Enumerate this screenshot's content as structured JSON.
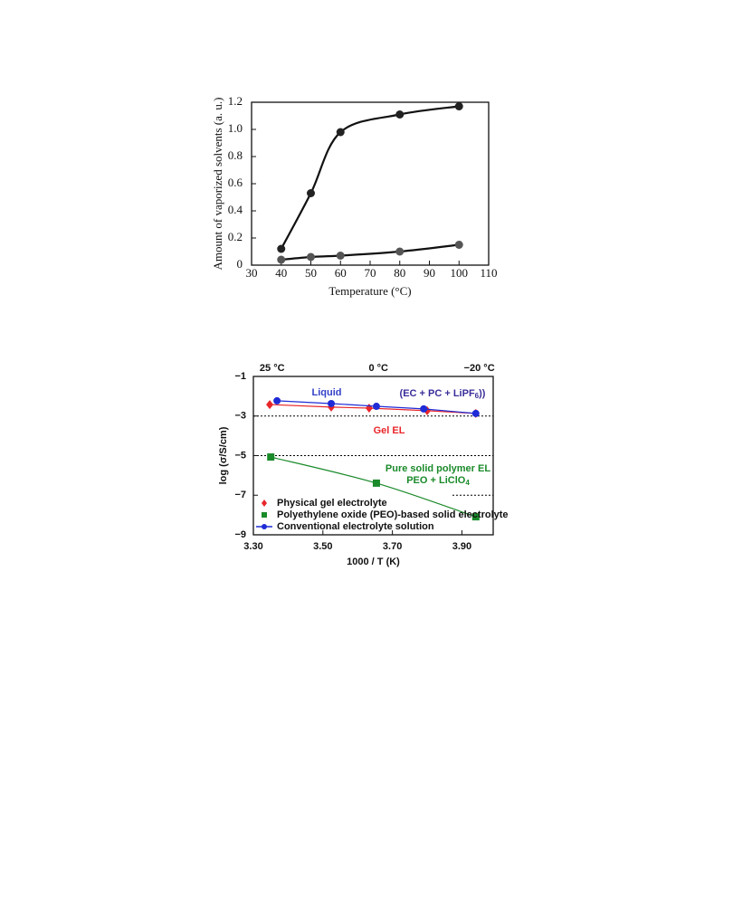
{
  "chart_data": [
    {
      "type": "line",
      "smooth": true,
      "x_label": "Temperature (°C)",
      "y_label": "Amount of vaporized solvents  (a. u.)",
      "xlim": [
        30,
        110
      ],
      "xticks": [
        30,
        40,
        50,
        60,
        70,
        80,
        90,
        100,
        110
      ],
      "ylim": [
        0,
        1.2
      ],
      "yticks": [
        0,
        0.2,
        0.4,
        0.6,
        0.8,
        {
          "value": 1.0,
          "label": "1.0"
        },
        1.2
      ],
      "series": [
        {
          "color": "#222222",
          "marker": "circle",
          "x": [
            40,
            50,
            60,
            80,
            100
          ],
          "values": [
            0.12,
            0.53,
            0.98,
            1.11,
            1.17
          ]
        },
        {
          "color": "#555555",
          "marker": "circle",
          "x": [
            40,
            50,
            60,
            80,
            100
          ],
          "values": [
            0.04,
            0.06,
            0.07,
            0.1,
            0.15
          ]
        }
      ]
    },
    {
      "type": "line",
      "smooth": false,
      "x_label": "1000 / T (K)",
      "y_label": "log (σ/S/cm)",
      "xlim": [
        3.3,
        3.99
      ],
      "xticks": [
        {
          "value": 3.3,
          "label": "3.30"
        },
        {
          "value": 3.5,
          "label": "3.50"
        },
        {
          "value": 3.7,
          "label": "3.70"
        },
        {
          "value": 3.9,
          "label": "3.90"
        }
      ],
      "ylim": [
        -9,
        -1
      ],
      "yticks": [
        {
          "value": -1,
          "label": "−1"
        },
        {
          "value": -3,
          "label": "−3"
        },
        {
          "value": -5,
          "label": "−5"
        },
        {
          "value": -7,
          "label": "−7"
        },
        {
          "value": -9,
          "label": "−9"
        }
      ],
      "top_ticks": [
        {
          "value": 3.354,
          "label": "25 °C"
        },
        {
          "value": 3.66,
          "label": "0 °C"
        },
        {
          "value": 3.95,
          "label": "−20 °C"
        }
      ],
      "annotations": [
        {
          "parts": [
            "Liquid"
          ],
          "color": "#3340c8"
        },
        {
          "parts": [
            "(EC + PC + LiPF",
            "6",
            "))"
          ],
          "color": "#3a2e9a"
        },
        {
          "parts": [
            "Gel EL"
          ],
          "color": "#e8262a"
        },
        {
          "parts": [
            "Pure solid polymer EL"
          ],
          "color": "#1a8a2a"
        },
        {
          "parts": [
            "PEO + LiClO",
            "4"
          ],
          "color": "#1a8a2a"
        }
      ],
      "series": [
        {
          "name": "Physical gel electrolyte",
          "color": "#e8262a",
          "marker": "diamond",
          "x": [
            3.347,
            3.524,
            3.633,
            3.8,
            3.94
          ],
          "values": [
            -2.42,
            -2.55,
            -2.6,
            -2.73,
            -2.87
          ]
        },
        {
          "name": "Polyethylene oxide (PEO)-based solid electrolyte",
          "color": "#1a8a2a",
          "marker": "square",
          "smooth": true,
          "x": [
            3.35,
            3.654,
            3.94
          ],
          "values": [
            -5.07,
            -6.39,
            -8.09
          ]
        },
        {
          "name": "Conventional electrolyte solution",
          "color": "#1f2bd6",
          "marker": "circle",
          "x": [
            3.368,
            3.524,
            3.654,
            3.79,
            3.94
          ],
          "values": [
            -2.23,
            -2.37,
            -2.51,
            -2.64,
            -2.87
          ]
        }
      ]
    }
  ]
}
